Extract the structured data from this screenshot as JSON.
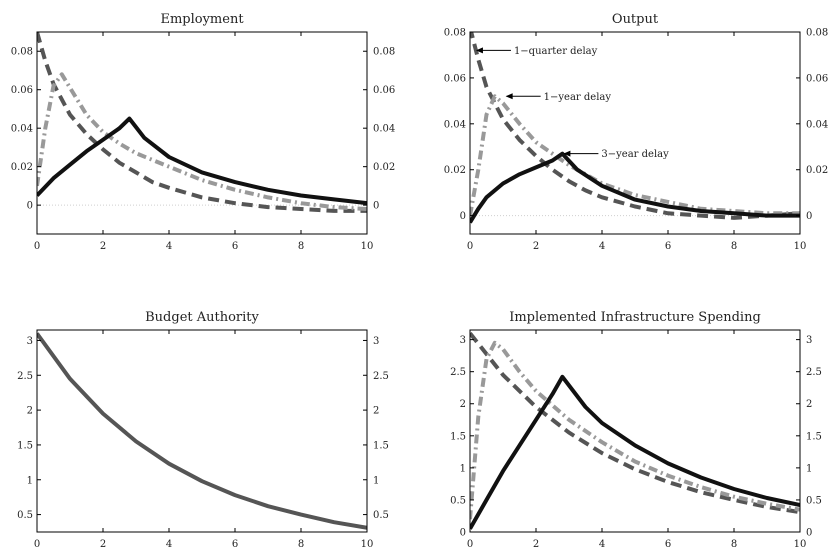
{
  "chart_data": [
    {
      "type": "line",
      "title": "Employment",
      "xlabel": "",
      "ylabel": "",
      "xlim": [
        0,
        10
      ],
      "ylim": [
        -0.015,
        0.09
      ],
      "xticks": [
        0,
        2,
        4,
        6,
        8,
        10
      ],
      "yticks": [
        0,
        0.02,
        0.04,
        0.06,
        0.08
      ],
      "ytick_labels": [
        "0",
        "0.02",
        "0.04",
        "0.06",
        "0.08"
      ],
      "right_axis_labels": true,
      "zero_line": true,
      "series": [
        {
          "style": "dash",
          "color": "#555555",
          "x": [
            0,
            0.25,
            0.5,
            1,
            1.5,
            2,
            2.5,
            3,
            3.5,
            4,
            5,
            6,
            7,
            8,
            9,
            10
          ],
          "y": [
            0.09,
            0.075,
            0.063,
            0.047,
            0.037,
            0.029,
            0.022,
            0.017,
            0.012,
            0.009,
            0.004,
            0.001,
            -0.001,
            -0.002,
            -0.003,
            -0.003
          ]
        },
        {
          "style": "dashdot",
          "color": "#999999",
          "x": [
            0,
            0.25,
            0.5,
            0.75,
            1,
            1.5,
            2,
            2.5,
            3,
            4,
            5,
            6,
            7,
            8,
            9,
            10
          ],
          "y": [
            0.01,
            0.04,
            0.062,
            0.068,
            0.061,
            0.047,
            0.038,
            0.032,
            0.027,
            0.02,
            0.013,
            0.008,
            0.004,
            0.001,
            -0.001,
            -0.002
          ]
        },
        {
          "style": "solid",
          "color": "#111111",
          "x": [
            0,
            0.5,
            1,
            1.5,
            2,
            2.5,
            2.8,
            3.25,
            4,
            5,
            6,
            7,
            8,
            9,
            10
          ],
          "y": [
            0.005,
            0.014,
            0.021,
            0.028,
            0.034,
            0.04,
            0.045,
            0.035,
            0.025,
            0.017,
            0.012,
            0.008,
            0.005,
            0.003,
            0.001
          ]
        }
      ]
    },
    {
      "type": "line",
      "title": "Output",
      "xlabel": "",
      "ylabel": "",
      "xlim": [
        0,
        10
      ],
      "ylim": [
        -0.008,
        0.08
      ],
      "xticks": [
        0,
        2,
        4,
        6,
        8,
        10
      ],
      "yticks": [
        0,
        0.02,
        0.04,
        0.06,
        0.08
      ],
      "ytick_labels": [
        "0",
        "0.02",
        "0.04",
        "0.06",
        "0.08"
      ],
      "right_axis_labels": true,
      "zero_line": true,
      "annotations": [
        {
          "text": "1−quarter delay",
          "x": 0.15,
          "y": 0.072
        },
        {
          "text": "1−year delay",
          "x": 1.05,
          "y": 0.052
        },
        {
          "text": "3−year delay",
          "x": 2.8,
          "y": 0.027
        }
      ],
      "series": [
        {
          "style": "dash",
          "color": "#555555",
          "x": [
            0,
            0.25,
            0.5,
            1,
            1.5,
            2,
            2.5,
            3,
            3.5,
            4,
            5,
            6,
            7,
            8,
            9,
            10
          ],
          "y": [
            0.082,
            0.068,
            0.056,
            0.042,
            0.033,
            0.026,
            0.02,
            0.015,
            0.011,
            0.008,
            0.004,
            0.001,
            0.0,
            -0.001,
            0.0,
            0.001
          ]
        },
        {
          "style": "dashdot",
          "color": "#999999",
          "x": [
            0,
            0.25,
            0.5,
            0.75,
            1,
            1.5,
            2,
            2.5,
            3,
            4,
            5,
            6,
            7,
            8,
            9,
            10
          ],
          "y": [
            0.0,
            0.02,
            0.044,
            0.052,
            0.049,
            0.04,
            0.032,
            0.027,
            0.022,
            0.014,
            0.009,
            0.006,
            0.003,
            0.002,
            0.001,
            0.001
          ]
        },
        {
          "style": "solid",
          "color": "#111111",
          "x": [
            0,
            0.25,
            0.5,
            1,
            1.5,
            2,
            2.5,
            2.8,
            3.25,
            4,
            5,
            6,
            7,
            8,
            9,
            10
          ],
          "y": [
            -0.003,
            0.003,
            0.008,
            0.014,
            0.018,
            0.021,
            0.024,
            0.027,
            0.02,
            0.013,
            0.007,
            0.004,
            0.002,
            0.001,
            0.0,
            0.0
          ]
        }
      ]
    },
    {
      "type": "line",
      "title": "Budget Authority",
      "xlabel": "",
      "ylabel": "",
      "xlim": [
        0,
        10
      ],
      "ylim": [
        0.25,
        3.15
      ],
      "xticks": [
        0,
        2,
        4,
        6,
        8,
        10
      ],
      "yticks": [
        0.5,
        1,
        1.5,
        2,
        2.5,
        3
      ],
      "ytick_labels": [
        "0.5",
        "1",
        "1.5",
        "2",
        "2.5",
        "3"
      ],
      "right_axis_labels": true,
      "zero_line": false,
      "series": [
        {
          "style": "solid",
          "color": "#555555",
          "x": [
            0,
            1,
            2,
            3,
            4,
            5,
            6,
            7,
            8,
            9,
            10
          ],
          "y": [
            3.1,
            2.45,
            1.95,
            1.55,
            1.23,
            0.98,
            0.78,
            0.62,
            0.5,
            0.39,
            0.31
          ]
        }
      ]
    },
    {
      "type": "line",
      "title": "Implemented Infrastructure Spending",
      "xlabel": "",
      "ylabel": "",
      "xlim": [
        0,
        10
      ],
      "ylim": [
        0,
        3.15
      ],
      "xticks": [
        0,
        2,
        4,
        6,
        8,
        10
      ],
      "yticks": [
        0,
        0.5,
        1,
        1.5,
        2,
        2.5,
        3
      ],
      "ytick_labels": [
        "0",
        "0.5",
        "1",
        "1.5",
        "2",
        "2.5",
        "3"
      ],
      "right_axis_labels": true,
      "zero_line": false,
      "series": [
        {
          "style": "dash",
          "color": "#555555",
          "x": [
            0,
            1,
            2,
            3,
            4,
            5,
            6,
            7,
            8,
            9,
            10
          ],
          "y": [
            3.1,
            2.45,
            1.95,
            1.55,
            1.23,
            0.98,
            0.78,
            0.62,
            0.5,
            0.39,
            0.31
          ]
        },
        {
          "style": "dashdot",
          "color": "#999999",
          "x": [
            0,
            0.25,
            0.5,
            0.75,
            1,
            1.5,
            2,
            3,
            4,
            5,
            6,
            7,
            8,
            9,
            10
          ],
          "y": [
            0.2,
            1.8,
            2.7,
            2.95,
            2.85,
            2.5,
            2.2,
            1.75,
            1.4,
            1.1,
            0.88,
            0.7,
            0.55,
            0.44,
            0.35
          ]
        },
        {
          "style": "solid",
          "color": "#111111",
          "x": [
            0,
            0.5,
            1,
            1.5,
            2,
            2.5,
            2.8,
            3.5,
            4,
            5,
            6,
            7,
            8,
            9,
            10
          ],
          "y": [
            0.05,
            0.5,
            0.95,
            1.35,
            1.75,
            2.15,
            2.42,
            1.95,
            1.7,
            1.35,
            1.07,
            0.85,
            0.67,
            0.53,
            0.42
          ]
        }
      ]
    }
  ]
}
